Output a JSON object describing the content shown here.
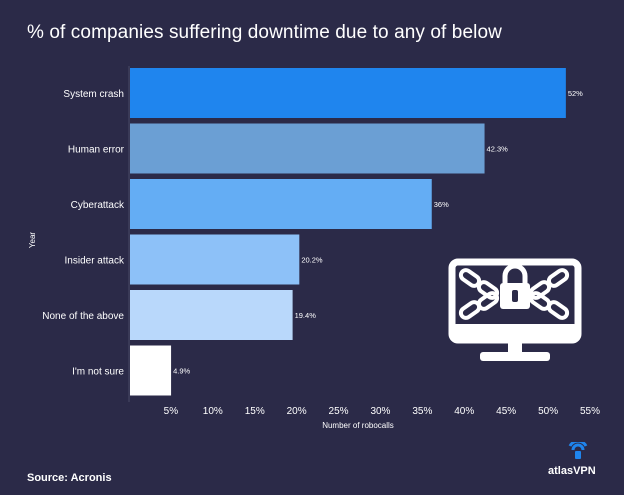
{
  "title": "% of companies suffering downtime due to any of below",
  "source": "Source: Acronis",
  "brand": "atlasVPN",
  "colors": {
    "background": "#2b2a48",
    "axis": "#4a4966",
    "text": "#ffffff",
    "icon_bg": "#ffffff",
    "icon_fg": "#2b2a48"
  },
  "chart_data": {
    "type": "bar",
    "orientation": "horizontal",
    "title": "% of companies suffering downtime due to any of below",
    "xlabel": "Number of robocalls",
    "ylabel": "Year",
    "categories": [
      "System crash",
      "Human error",
      "Cyberattack",
      "Insider attack",
      "None of the above",
      "I'm not sure"
    ],
    "values": [
      52,
      42.3,
      36,
      20.2,
      19.4,
      4.9
    ],
    "value_labels": [
      "52%",
      "42.3%",
      "36%",
      "20.2%",
      "19.4%",
      "4.9%"
    ],
    "bar_colors": [
      "#1f85ee",
      "#6b9fd4",
      "#64adf4",
      "#8dc1f8",
      "#b9d8fb",
      "#ffffff"
    ],
    "xlim": [
      0,
      55
    ],
    "xticks": [
      5,
      10,
      15,
      20,
      25,
      30,
      35,
      40,
      45,
      50,
      55
    ],
    "xtick_labels": [
      "5%",
      "10%",
      "15%",
      "20%",
      "25%",
      "30%",
      "35%",
      "40%",
      "45%",
      "50%",
      "55%"
    ],
    "grid": false
  }
}
